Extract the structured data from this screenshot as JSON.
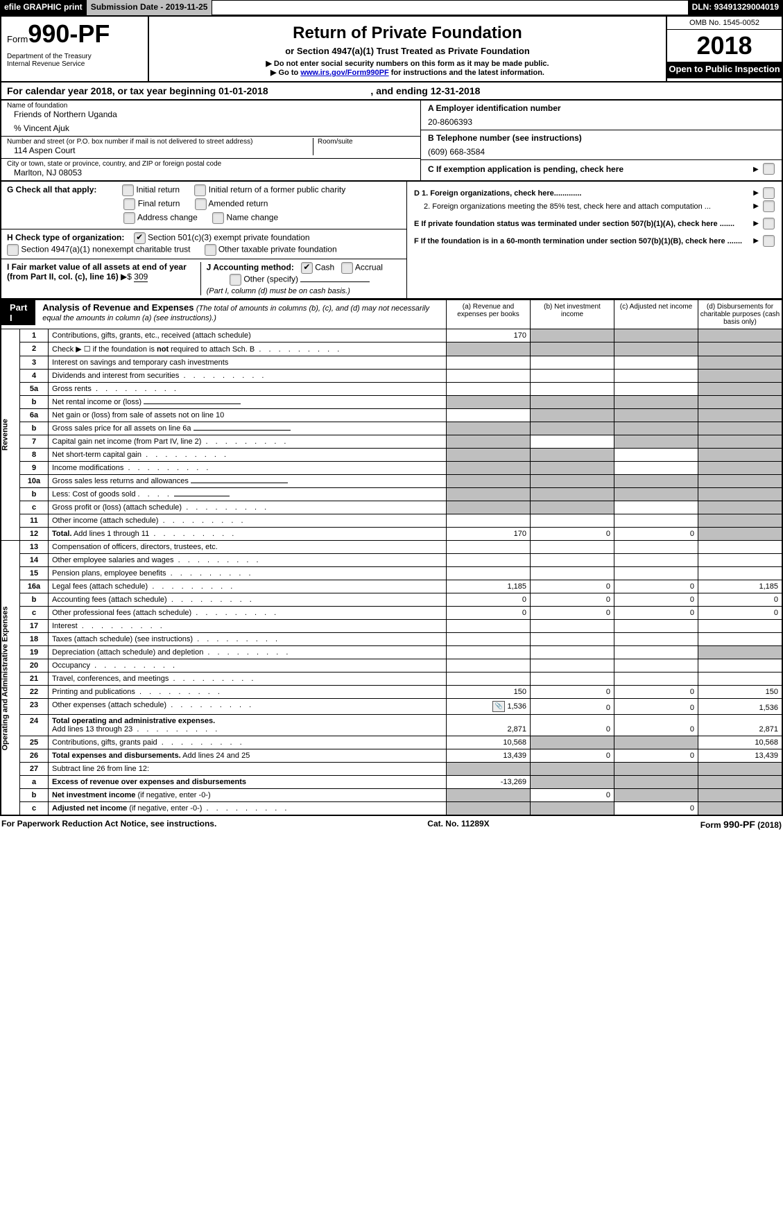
{
  "topbar": {
    "efile": "efile GRAPHIC print",
    "submission_label": "Submission Date - ",
    "submission_date": "2019-11-25",
    "dln_label": "DLN: ",
    "dln": "93491329004019"
  },
  "header": {
    "form_word": "Form",
    "form_no": "990-PF",
    "dept": "Department of the Treasury",
    "irs": "Internal Revenue Service",
    "title": "Return of Private Foundation",
    "subtitle": "or Section 4947(a)(1) Trust Treated as Private Foundation",
    "note1": "▶ Do not enter social security numbers on this form as it may be made public.",
    "note2_pre": "▶ Go to ",
    "note2_link": "www.irs.gov/Form990PF",
    "note2_post": " for instructions and the latest information.",
    "omb": "OMB No. 1545-0052",
    "year": "2018",
    "open": "Open to Public Inspection"
  },
  "calendar": {
    "line_a": "For calendar year 2018, or tax year beginning ",
    "begin": "01-01-2018",
    "mid": " , and ending ",
    "end": "12-31-2018"
  },
  "entity": {
    "name_label": "Name of foundation",
    "name": "Friends of Northern Uganda",
    "care_of": "% Vincent Ajuk",
    "addr_label": "Number and street (or P.O. box number if mail is not delivered to street address)",
    "addr": "114 Aspen Court",
    "room_label": "Room/suite",
    "city_label": "City or town, state or province, country, and ZIP or foreign postal code",
    "city": "Marlton, NJ  08053"
  },
  "ein": {
    "label": "A Employer identification number",
    "value": "20-8606393"
  },
  "phone": {
    "label": "B Telephone number (see instructions)",
    "value": "(609) 668-3584"
  },
  "c_line": "C  If exemption application is pending, check here",
  "g": {
    "label": "G Check all that apply:",
    "o1": "Initial return",
    "o2": "Initial return of a former public charity",
    "o3": "Final return",
    "o4": "Amended return",
    "o5": "Address change",
    "o6": "Name change"
  },
  "h": {
    "label": "H Check type of organization:",
    "o1": "Section 501(c)(3) exempt private foundation",
    "o2": "Section 4947(a)(1) nonexempt charitable trust",
    "o3": "Other taxable private foundation"
  },
  "i": {
    "label": "I Fair market value of all assets at end of year (from Part II, col. (c), line 16) ",
    "amount_prefix": "▶$ ",
    "amount": "309"
  },
  "j": {
    "label": "J Accounting method:",
    "o1": "Cash",
    "o2": "Accrual",
    "o3": "Other (specify)",
    "note": "(Part I, column (d) must be on cash basis.)"
  },
  "d1": "D 1. Foreign organizations, check here.............",
  "d2": "2. Foreign organizations meeting the 85% test, check here and attach computation ...",
  "e": "E  If private foundation status was terminated under section 507(b)(1)(A), check here .......",
  "f": "F  If the foundation is in a 60-month termination under section 507(b)(1)(B), check here .......",
  "part1": {
    "tag": "Part I",
    "title": "Analysis of Revenue and Expenses",
    "note": "(The total of amounts in columns (b), (c), and (d) may not necessarily equal the amounts in column (a) (see instructions).)"
  },
  "cols": {
    "a": "(a)  Revenue and expenses per books",
    "b": "(b)  Net investment income",
    "c": "(c)  Adjusted net income",
    "d": "(d)  Disbursements for charitable purposes (cash basis only)"
  },
  "section_labels": {
    "revenue": "Revenue",
    "expenses": "Operating and Administrative Expenses"
  },
  "rows": [
    {
      "n": "1",
      "t": "Contributions, gifts, grants, etc., received (attach schedule)",
      "a": "170",
      "b": "shade",
      "c": "shade",
      "d": "shade"
    },
    {
      "n": "2",
      "t": "Check ▶ ☐ if the foundation is <b>not</b> required to attach Sch. B",
      "a": "shade",
      "b": "shade",
      "c": "shade",
      "d": "shade",
      "dots": 1
    },
    {
      "n": "3",
      "t": "Interest on savings and temporary cash investments",
      "a": "",
      "b": "",
      "c": "",
      "d": "shade"
    },
    {
      "n": "4",
      "t": "Dividends and interest from securities",
      "a": "",
      "b": "",
      "c": "",
      "d": "shade",
      "dots": 1
    },
    {
      "n": "5a",
      "t": "Gross rents",
      "a": "",
      "b": "",
      "c": "",
      "d": "shade",
      "dots": 1
    },
    {
      "n": "b",
      "t": "Net rental income or (loss) <span class='underline'></span>",
      "a": "shade",
      "b": "shade",
      "c": "shade",
      "d": "shade"
    },
    {
      "n": "6a",
      "t": "Net gain or (loss) from sale of assets not on line 10",
      "a": "",
      "b": "shade",
      "c": "shade",
      "d": "shade"
    },
    {
      "n": "b",
      "t": "Gross sales price for all assets on line 6a <span class='underline'></span>",
      "a": "shade",
      "b": "shade",
      "c": "shade",
      "d": "shade"
    },
    {
      "n": "7",
      "t": "Capital gain net income (from Part IV, line 2)",
      "a": "shade",
      "b": "",
      "c": "shade",
      "d": "shade",
      "dots": 1
    },
    {
      "n": "8",
      "t": "Net short-term capital gain",
      "a": "shade",
      "b": "shade",
      "c": "",
      "d": "shade",
      "dots": 1
    },
    {
      "n": "9",
      "t": "Income modifications",
      "a": "shade",
      "b": "shade",
      "c": "",
      "d": "shade",
      "dots": 1
    },
    {
      "n": "10a",
      "t": "Gross sales less returns and allowances <span class='underline'></span>",
      "a": "shade",
      "b": "shade",
      "c": "shade",
      "d": "shade"
    },
    {
      "n": "b",
      "t": "Less: Cost of goods sold <span class='dots'>. . . .</span> <span class='underline' style='min-width:80px'></span>",
      "a": "shade",
      "b": "shade",
      "c": "shade",
      "d": "shade"
    },
    {
      "n": "c",
      "t": "Gross profit or (loss) (attach schedule)",
      "a": "shade",
      "b": "shade",
      "c": "",
      "d": "shade",
      "dots": 1
    },
    {
      "n": "11",
      "t": "Other income (attach schedule)",
      "a": "",
      "b": "",
      "c": "",
      "d": "shade",
      "dots": 1
    },
    {
      "n": "12",
      "t": "<b>Total.</b> Add lines 1 through 11",
      "a": "170",
      "b": "0",
      "c": "0",
      "d": "shade",
      "dots": 1,
      "bold": 1
    },
    {
      "n": "13",
      "t": "Compensation of officers, directors, trustees, etc.",
      "a": "",
      "b": "",
      "c": "",
      "d": ""
    },
    {
      "n": "14",
      "t": "Other employee salaries and wages",
      "a": "",
      "b": "",
      "c": "",
      "d": "",
      "dots": 1
    },
    {
      "n": "15",
      "t": "Pension plans, employee benefits",
      "a": "",
      "b": "",
      "c": "",
      "d": "",
      "dots": 1
    },
    {
      "n": "16a",
      "t": "Legal fees (attach schedule)",
      "a": "1,185",
      "b": "0",
      "c": "0",
      "d": "1,185",
      "dots": 1
    },
    {
      "n": "b",
      "t": "Accounting fees (attach schedule)",
      "a": "0",
      "b": "0",
      "c": "0",
      "d": "0",
      "dots": 1
    },
    {
      "n": "c",
      "t": "Other professional fees (attach schedule)",
      "a": "0",
      "b": "0",
      "c": "0",
      "d": "0",
      "dots": 1
    },
    {
      "n": "17",
      "t": "Interest",
      "a": "",
      "b": "",
      "c": "",
      "d": "",
      "dots": 1
    },
    {
      "n": "18",
      "t": "Taxes (attach schedule) (see instructions)",
      "a": "",
      "b": "",
      "c": "",
      "d": "",
      "dots": 1
    },
    {
      "n": "19",
      "t": "Depreciation (attach schedule) and depletion",
      "a": "",
      "b": "",
      "c": "",
      "d": "shade",
      "dots": 1
    },
    {
      "n": "20",
      "t": "Occupancy",
      "a": "",
      "b": "",
      "c": "",
      "d": "",
      "dots": 1
    },
    {
      "n": "21",
      "t": "Travel, conferences, and meetings",
      "a": "",
      "b": "",
      "c": "",
      "d": "",
      "dots": 1
    },
    {
      "n": "22",
      "t": "Printing and publications",
      "a": "150",
      "b": "0",
      "c": "0",
      "d": "150",
      "dots": 1
    },
    {
      "n": "23",
      "t": "Other expenses (attach schedule)",
      "a": "1,536",
      "b": "0",
      "c": "0",
      "d": "1,536",
      "dots": 1,
      "icon": 1
    },
    {
      "n": "24",
      "t": "<b>Total operating and administrative expenses.</b><br>Add lines 13 through 23",
      "a": "2,871",
      "b": "0",
      "c": "0",
      "d": "2,871",
      "dots": 1
    },
    {
      "n": "25",
      "t": "Contributions, gifts, grants paid",
      "a": "10,568",
      "b": "shade",
      "c": "shade",
      "d": "10,568",
      "dots": 1
    },
    {
      "n": "26",
      "t": "<b>Total expenses and disbursements.</b> Add lines 24 and 25",
      "a": "13,439",
      "b": "0",
      "c": "0",
      "d": "13,439",
      "bold": 1
    },
    {
      "n": "27",
      "t": "Subtract line 26 from line 12:",
      "a": "shade",
      "b": "shade",
      "c": "shade",
      "d": "shade"
    },
    {
      "n": "a",
      "t": "<b>Excess of revenue over expenses and disbursements</b>",
      "a": "-13,269",
      "b": "shade",
      "c": "shade",
      "d": "shade"
    },
    {
      "n": "b",
      "t": "<b>Net investment income</b> (if negative, enter -0-)",
      "a": "shade",
      "b": "0",
      "c": "shade",
      "d": "shade"
    },
    {
      "n": "c",
      "t": "<b>Adjusted net income</b> (if negative, enter -0-)",
      "a": "shade",
      "b": "shade",
      "c": "0",
      "d": "shade",
      "dots": 1
    }
  ],
  "footer": {
    "left": "For Paperwork Reduction Act Notice, see instructions.",
    "mid": "Cat. No. 11289X",
    "right": "Form 990-PF (2018)"
  }
}
